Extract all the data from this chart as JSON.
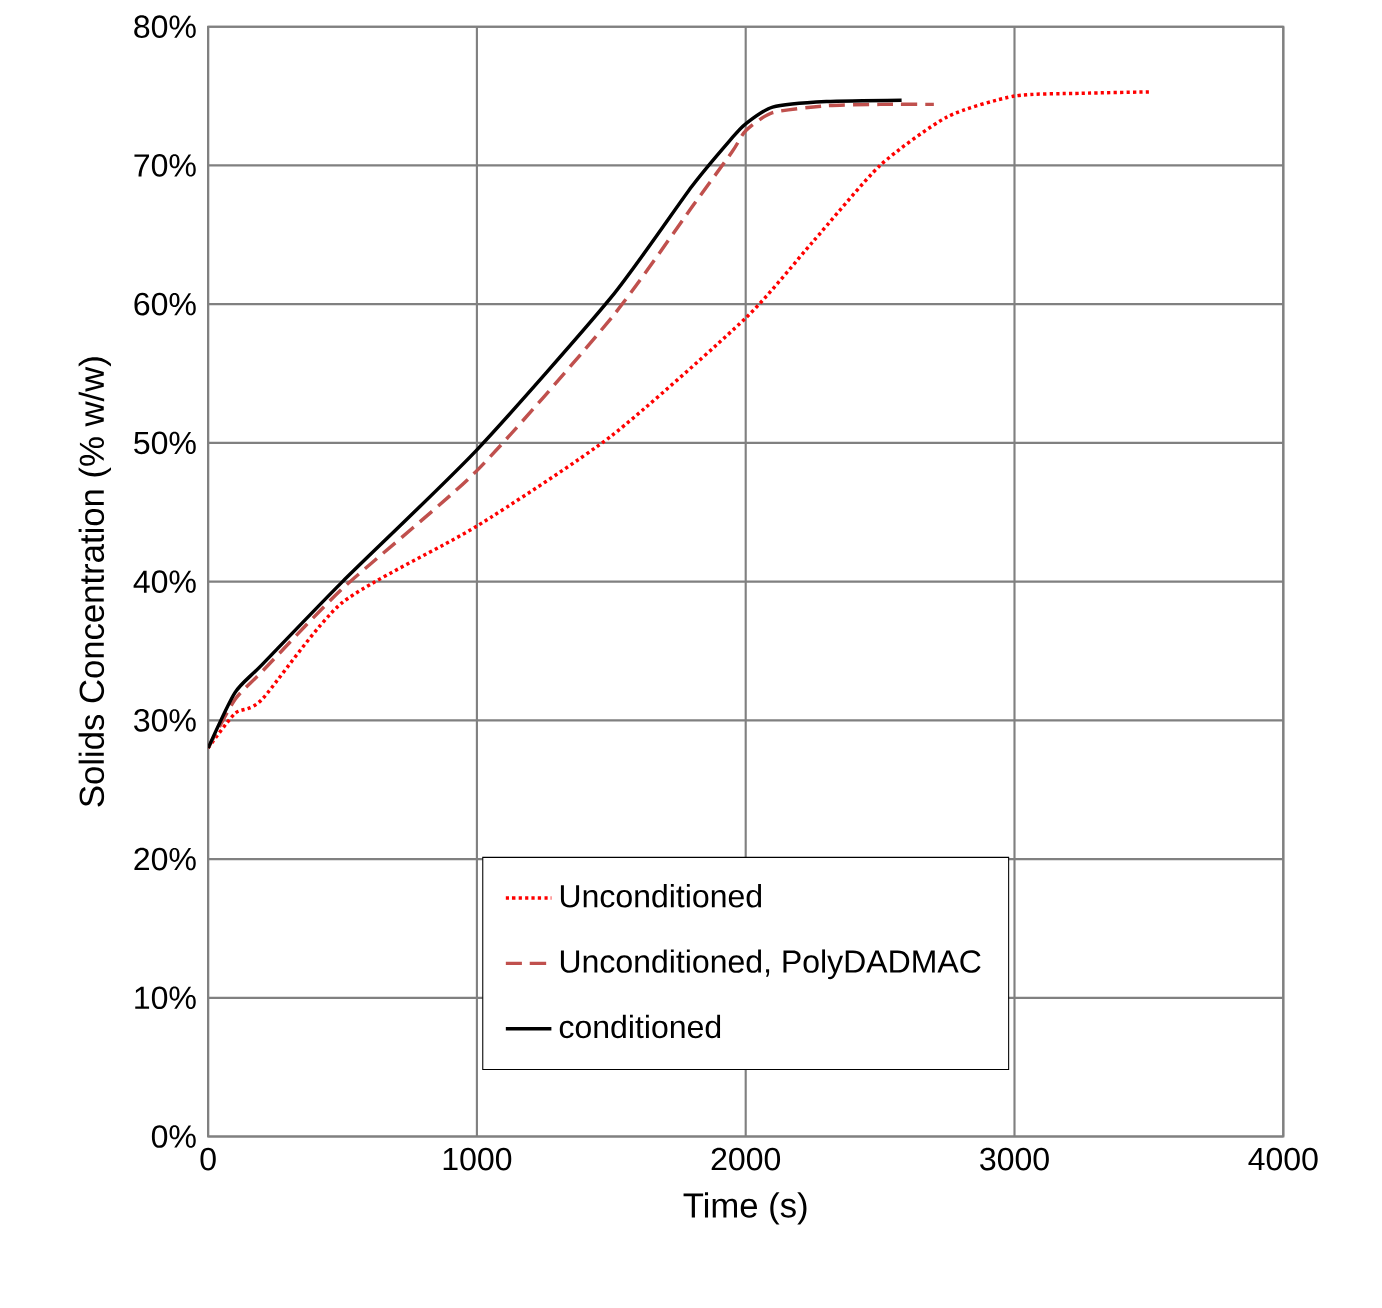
{
  "chart_data": {
    "type": "line",
    "xlabel": "Time (s)",
    "ylabel": "Solids Concentration (% w/w)",
    "xlim": [
      0,
      4000
    ],
    "xticks": [
      0,
      1000,
      2000,
      3000,
      4000
    ],
    "ylim": [
      0,
      80
    ],
    "yticks": [
      {
        "value": 0,
        "label": "0%"
      },
      {
        "value": 10,
        "label": "10%"
      },
      {
        "value": 20,
        "label": "20%"
      },
      {
        "value": 30,
        "label": "30%"
      },
      {
        "value": 40,
        "label": "40%"
      },
      {
        "value": 50,
        "label": "50%"
      },
      {
        "value": 60,
        "label": "60%"
      },
      {
        "value": 70,
        "label": "70%"
      },
      {
        "value": 80,
        "label": "80%"
      }
    ],
    "grid": true,
    "legend": "bottom",
    "series": [
      {
        "name": "Unconditioned",
        "color": "#ff0000",
        "line_style": "dotted",
        "x": [
          0,
          100,
          200,
          500,
          1000,
          1500,
          2000,
          2250,
          2500,
          2750,
          3000,
          3250,
          3500
        ],
        "values": [
          28,
          30.5,
          31.5,
          38.5,
          44,
          50.5,
          59,
          64.5,
          70,
          73.5,
          75,
          75.2,
          75.3
        ]
      },
      {
        "name": "Unconditioned, PolyDADMAC",
        "color": "#c0504d",
        "line_style": "dashed",
        "x": [
          0,
          100,
          200,
          500,
          1000,
          1500,
          1800,
          1950,
          2000,
          2100,
          2300,
          2500,
          2700
        ],
        "values": [
          28,
          31.5,
          33.5,
          39.5,
          48,
          59,
          67,
          71,
          72.5,
          73.8,
          74.3,
          74.4,
          74.4
        ]
      },
      {
        "name": "conditioned",
        "color": "#000000",
        "line_style": "solid",
        "x": [
          0,
          100,
          200,
          500,
          1000,
          1500,
          1800,
          1950,
          2000,
          2100,
          2300,
          2580
        ],
        "values": [
          28,
          32,
          34,
          40,
          49.5,
          60.5,
          68.5,
          72,
          73,
          74.2,
          74.6,
          74.7
        ]
      }
    ]
  }
}
